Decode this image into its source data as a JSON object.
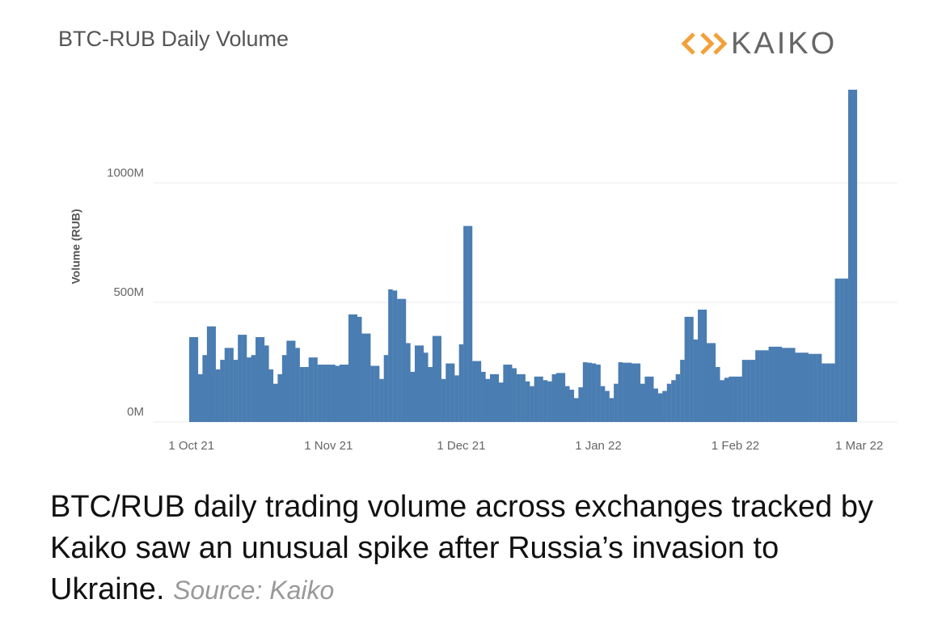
{
  "chart_data": {
    "type": "bar",
    "title": "BTC-RUB Daily Volume",
    "brand": "KAIKO",
    "ylabel": "Volume (RUB)",
    "color": "#4a7db2",
    "grid": true,
    "ylim": [
      0,
      1400
    ],
    "yticks": [
      {
        "value": 0,
        "label": "0M"
      },
      {
        "value": 500,
        "label": "500M"
      },
      {
        "value": 1000,
        "label": "1000M"
      }
    ],
    "categories": [
      "1 Oct 21",
      null,
      null,
      null,
      null,
      null,
      null,
      null,
      null,
      null,
      null,
      null,
      null,
      null,
      null,
      null,
      null,
      null,
      null,
      null,
      null,
      null,
      null,
      null,
      null,
      null,
      null,
      null,
      null,
      null,
      null,
      "1 Nov 21",
      null,
      null,
      null,
      null,
      null,
      null,
      null,
      null,
      null,
      null,
      null,
      null,
      null,
      null,
      null,
      null,
      null,
      null,
      null,
      null,
      null,
      null,
      null,
      null,
      null,
      null,
      null,
      null,
      null,
      "1 Dec 21",
      null,
      null,
      null,
      null,
      null,
      null,
      null,
      null,
      null,
      null,
      null,
      null,
      null,
      null,
      null,
      null,
      null,
      null,
      null,
      null,
      null,
      null,
      null,
      null,
      null,
      null,
      null,
      null,
      null,
      null,
      "1 Jan 22",
      null,
      null,
      null,
      null,
      null,
      null,
      null,
      null,
      null,
      null,
      null,
      null,
      null,
      null,
      null,
      null,
      null,
      null,
      null,
      null,
      null,
      null,
      null,
      null,
      null,
      null,
      null,
      null,
      null,
      null,
      "1 Feb 22",
      null,
      null,
      null,
      null,
      null,
      null,
      null,
      null,
      null,
      null,
      null,
      null,
      null,
      null,
      null,
      null,
      null,
      null,
      null,
      null,
      null,
      null,
      null,
      null,
      null,
      null,
      null,
      "1 Mar 22"
    ],
    "values": [
      355,
      355,
      200,
      280,
      400,
      400,
      220,
      260,
      310,
      310,
      260,
      365,
      365,
      270,
      280,
      355,
      355,
      320,
      220,
      160,
      200,
      280,
      340,
      340,
      310,
      230,
      230,
      270,
      270,
      240,
      240,
      240,
      240,
      235,
      240,
      240,
      450,
      450,
      440,
      370,
      370,
      235,
      235,
      180,
      280,
      555,
      550,
      515,
      515,
      330,
      210,
      320,
      320,
      290,
      230,
      360,
      360,
      180,
      245,
      245,
      195,
      325,
      820,
      820,
      255,
      255,
      210,
      180,
      200,
      200,
      165,
      240,
      240,
      225,
      200,
      200,
      170,
      150,
      190,
      190,
      175,
      170,
      200,
      205,
      205,
      150,
      135,
      100,
      145,
      250,
      248,
      245,
      240,
      150,
      130,
      100,
      160,
      250,
      248,
      248,
      245,
      245,
      160,
      190,
      190,
      140,
      120,
      130,
      160,
      175,
      200,
      260,
      440,
      440,
      345,
      470,
      470,
      330,
      330,
      230,
      175,
      185,
      190,
      190,
      190,
      260,
      260,
      260,
      300,
      300,
      300,
      315,
      315,
      315,
      310,
      310,
      310,
      290,
      290,
      290,
      285,
      285,
      285,
      245,
      245,
      245,
      600,
      600,
      600,
      1390,
      1390,
      null
    ]
  },
  "caption": {
    "text": "BTC/RUB daily trading volume across exchanges tracked by Kaiko saw an unusual spike after Russia’s invasion to Ukraine.",
    "source": "Source: Kaiko"
  }
}
